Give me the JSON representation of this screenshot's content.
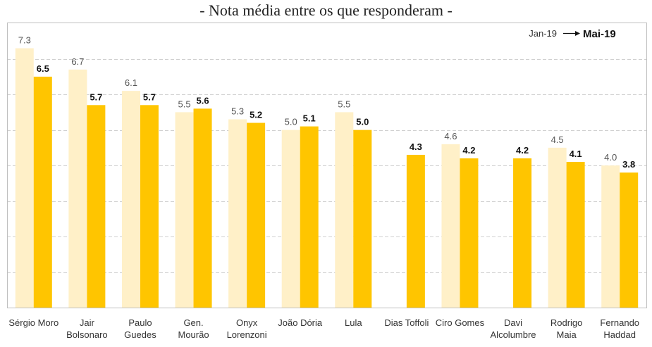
{
  "chart_data": {
    "type": "bar",
    "title": "- Nota média entre os que responderam -",
    "categories": [
      [
        "Sérgio Moro"
      ],
      [
        "Jair",
        "Bolsonaro"
      ],
      [
        "Paulo",
        "Guedes"
      ],
      [
        "Gen.",
        "Mourão"
      ],
      [
        "Onyx",
        "Lorenzoni"
      ],
      [
        "João Dória"
      ],
      [
        "Lula"
      ],
      [
        "Dias Toffoli"
      ],
      [
        "Ciro Gomes"
      ],
      [
        "Davi",
        "Alcolumbre"
      ],
      [
        "Rodrigo",
        "Maia"
      ],
      [
        "Fernando",
        "Haddad"
      ]
    ],
    "series": [
      {
        "name": "Jan-19",
        "labels": [
          "7.3",
          "6.7",
          "6.1",
          "5.5",
          "5.3",
          "5.0",
          "5.5",
          null,
          "4.6",
          null,
          "4.5",
          "4.0"
        ],
        "values": [
          7.3,
          6.7,
          6.1,
          5.5,
          5.3,
          5.0,
          5.5,
          null,
          4.6,
          null,
          4.5,
          4.0
        ],
        "color": "#FFF0C8"
      },
      {
        "name": "Mai-19",
        "labels": [
          "6.5",
          "5.7",
          "5.7",
          "5.6",
          "5.2",
          "5.1",
          "5.0",
          "4.3",
          "4.2",
          "4.2",
          "4.1",
          "3.8"
        ],
        "values": [
          6.5,
          5.7,
          5.7,
          5.6,
          5.2,
          5.1,
          5.0,
          4.3,
          4.2,
          4.2,
          4.1,
          3.8
        ],
        "color": "#FFC500"
      }
    ],
    "ylim": [
      0,
      8
    ],
    "grid": true,
    "legend_position": "top-right"
  }
}
